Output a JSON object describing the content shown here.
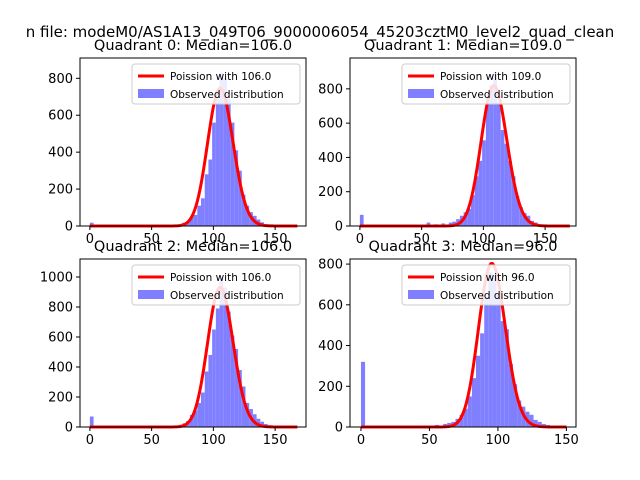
{
  "suptitle": "n file: modeM0/AS1A13_049T06_9000006054_45203cztM0_level2_quad_clean",
  "colors": {
    "hist": "#7f7fff",
    "poisson": "#ff0000"
  },
  "chart_data": [
    {
      "type": "bar+line",
      "title": "Quadrant 0: Median=106.0",
      "xlim": [
        -8,
        175
      ],
      "ylim": [
        0,
        910
      ],
      "xticks": [
        0,
        50,
        100,
        150
      ],
      "yticks": [
        0,
        200,
        400,
        600,
        800
      ],
      "legend": [
        "Poission with 106.0",
        "Observed distribution"
      ],
      "legend_position": "upper right",
      "poisson_lambda": 106,
      "poisson_x_range": [
        0,
        168
      ],
      "hist_bin_width": 3,
      "hist_bins": [
        [
          0,
          18
        ],
        [
          3,
          4
        ],
        [
          54,
          2
        ],
        [
          60,
          3
        ],
        [
          66,
          4
        ],
        [
          72,
          10
        ],
        [
          75,
          18
        ],
        [
          78,
          25
        ],
        [
          81,
          50
        ],
        [
          84,
          60
        ],
        [
          87,
          110
        ],
        [
          90,
          150
        ],
        [
          93,
          280
        ],
        [
          96,
          360
        ],
        [
          99,
          560
        ],
        [
          102,
          690
        ],
        [
          105,
          830
        ],
        [
          108,
          800
        ],
        [
          111,
          690
        ],
        [
          114,
          560
        ],
        [
          117,
          410
        ],
        [
          120,
          300
        ],
        [
          123,
          170
        ],
        [
          126,
          110
        ],
        [
          129,
          75
        ],
        [
          132,
          55
        ],
        [
          135,
          35
        ],
        [
          138,
          20
        ],
        [
          141,
          10
        ],
        [
          144,
          5
        ],
        [
          147,
          3
        ],
        [
          156,
          2
        ],
        [
          162,
          2
        ],
        [
          165,
          1
        ]
      ]
    },
    {
      "type": "bar+line",
      "title": "Quadrant 1: Median=109.0",
      "xlim": [
        -8,
        175
      ],
      "ylim": [
        0,
        980
      ],
      "xticks": [
        0,
        50,
        100,
        150
      ],
      "yticks": [
        0,
        200,
        400,
        600,
        800
      ],
      "legend": [
        "Poission with 109.0",
        "Observed distribution"
      ],
      "legend_position": "upper right",
      "poisson_lambda": 109,
      "poisson_x_range": [
        0,
        170
      ],
      "hist_bin_width": 3,
      "hist_bins": [
        [
          0,
          65
        ],
        [
          3,
          5
        ],
        [
          54,
          20
        ],
        [
          60,
          10
        ],
        [
          66,
          15
        ],
        [
          72,
          20
        ],
        [
          75,
          25
        ],
        [
          78,
          40
        ],
        [
          81,
          60
        ],
        [
          84,
          80
        ],
        [
          87,
          100
        ],
        [
          90,
          180
        ],
        [
          93,
          290
        ],
        [
          96,
          380
        ],
        [
          99,
          500
        ],
        [
          102,
          720
        ],
        [
          105,
          820
        ],
        [
          108,
          900
        ],
        [
          111,
          720
        ],
        [
          114,
          560
        ],
        [
          117,
          480
        ],
        [
          120,
          380
        ],
        [
          123,
          290
        ],
        [
          126,
          175
        ],
        [
          129,
          110
        ],
        [
          132,
          75
        ],
        [
          135,
          60
        ],
        [
          138,
          30
        ],
        [
          141,
          20
        ],
        [
          144,
          10
        ],
        [
          150,
          5
        ],
        [
          156,
          3
        ],
        [
          165,
          2
        ]
      ]
    },
    {
      "type": "bar+line",
      "title": "Quadrant 2: Median=106.0",
      "xlim": [
        -8,
        175
      ],
      "ylim": [
        0,
        1120
      ],
      "xticks": [
        0,
        50,
        100,
        150
      ],
      "yticks": [
        0,
        200,
        400,
        600,
        800,
        1000
      ],
      "legend": [
        "Poission with 106.0",
        "Observed distribution"
      ],
      "legend_position": "upper right",
      "poisson_lambda": 106,
      "poisson_x_range": [
        0,
        168
      ],
      "hist_bin_width": 3,
      "hist_bins": [
        [
          0,
          70
        ],
        [
          3,
          5
        ],
        [
          60,
          3
        ],
        [
          66,
          5
        ],
        [
          72,
          15
        ],
        [
          75,
          25
        ],
        [
          78,
          40
        ],
        [
          81,
          80
        ],
        [
          84,
          110
        ],
        [
          87,
          160
        ],
        [
          90,
          230
        ],
        [
          93,
          370
        ],
        [
          96,
          480
        ],
        [
          99,
          650
        ],
        [
          102,
          790
        ],
        [
          105,
          1000
        ],
        [
          108,
          930
        ],
        [
          111,
          770
        ],
        [
          114,
          610
        ],
        [
          117,
          520
        ],
        [
          120,
          380
        ],
        [
          123,
          270
        ],
        [
          126,
          160
        ],
        [
          129,
          120
        ],
        [
          132,
          85
        ],
        [
          135,
          55
        ],
        [
          138,
          35
        ],
        [
          141,
          20
        ],
        [
          144,
          12
        ],
        [
          147,
          6
        ],
        [
          156,
          3
        ],
        [
          165,
          2
        ]
      ]
    },
    {
      "type": "bar+line",
      "title": "Quadrant 3: Median=96.0",
      "xlim": [
        -8,
        157
      ],
      "ylim": [
        0,
        825
      ],
      "xticks": [
        0,
        50,
        100,
        150
      ],
      "yticks": [
        0,
        200,
        400,
        600,
        800
      ],
      "legend": [
        "Poission with 96.0",
        "Observed distribution"
      ],
      "legend_position": "upper right",
      "poisson_lambda": 96,
      "poisson_x_range": [
        0,
        150
      ],
      "hist_bin_width": 3,
      "hist_bins": [
        [
          0,
          320
        ],
        [
          3,
          5
        ],
        [
          48,
          5
        ],
        [
          54,
          10
        ],
        [
          60,
          15
        ],
        [
          63,
          20
        ],
        [
          66,
          25
        ],
        [
          69,
          40
        ],
        [
          72,
          60
        ],
        [
          75,
          90
        ],
        [
          78,
          150
        ],
        [
          81,
          240
        ],
        [
          84,
          350
        ],
        [
          87,
          460
        ],
        [
          90,
          640
        ],
        [
          93,
          760
        ],
        [
          96,
          750
        ],
        [
          99,
          660
        ],
        [
          102,
          520
        ],
        [
          105,
          480
        ],
        [
          108,
          310
        ],
        [
          111,
          210
        ],
        [
          114,
          130
        ],
        [
          117,
          100
        ],
        [
          120,
          75
        ],
        [
          123,
          60
        ],
        [
          126,
          35
        ],
        [
          129,
          25
        ],
        [
          132,
          15
        ],
        [
          135,
          10
        ],
        [
          138,
          5
        ],
        [
          141,
          3
        ]
      ]
    }
  ]
}
